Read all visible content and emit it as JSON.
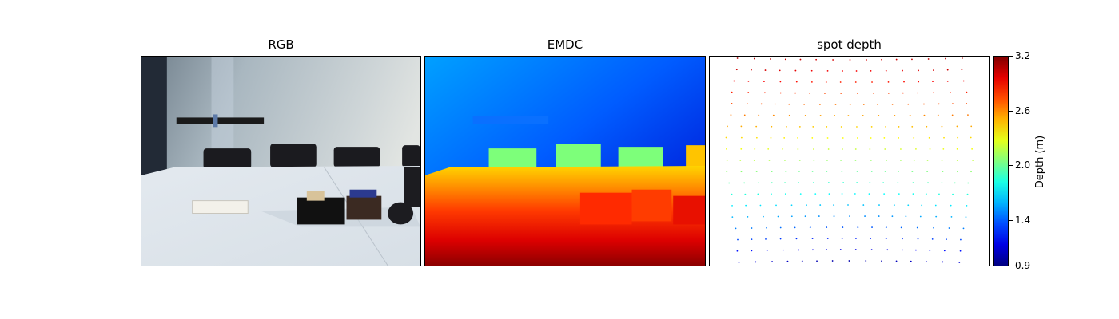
{
  "chart_data": {
    "type": "heatmap",
    "panels": [
      {
        "title": "RGB"
      },
      {
        "title": "EMDC"
      },
      {
        "title": "spot depth"
      }
    ],
    "colorbar": {
      "label": "Depth (m)",
      "colormap": "jet_r",
      "range": [
        0.9,
        3.2
      ],
      "ticks": [
        "3.2",
        "2.6",
        "2.0",
        "1.4",
        "0.9"
      ],
      "tick_values": [
        3.2,
        2.6,
        2.0,
        1.4,
        0.9
      ]
    }
  },
  "colors": {
    "wall": "#9fb0bb",
    "table": "#e9eef3",
    "chair": "#1b1b1f",
    "dark_near": "#7f0000",
    "far": "#00007f"
  }
}
